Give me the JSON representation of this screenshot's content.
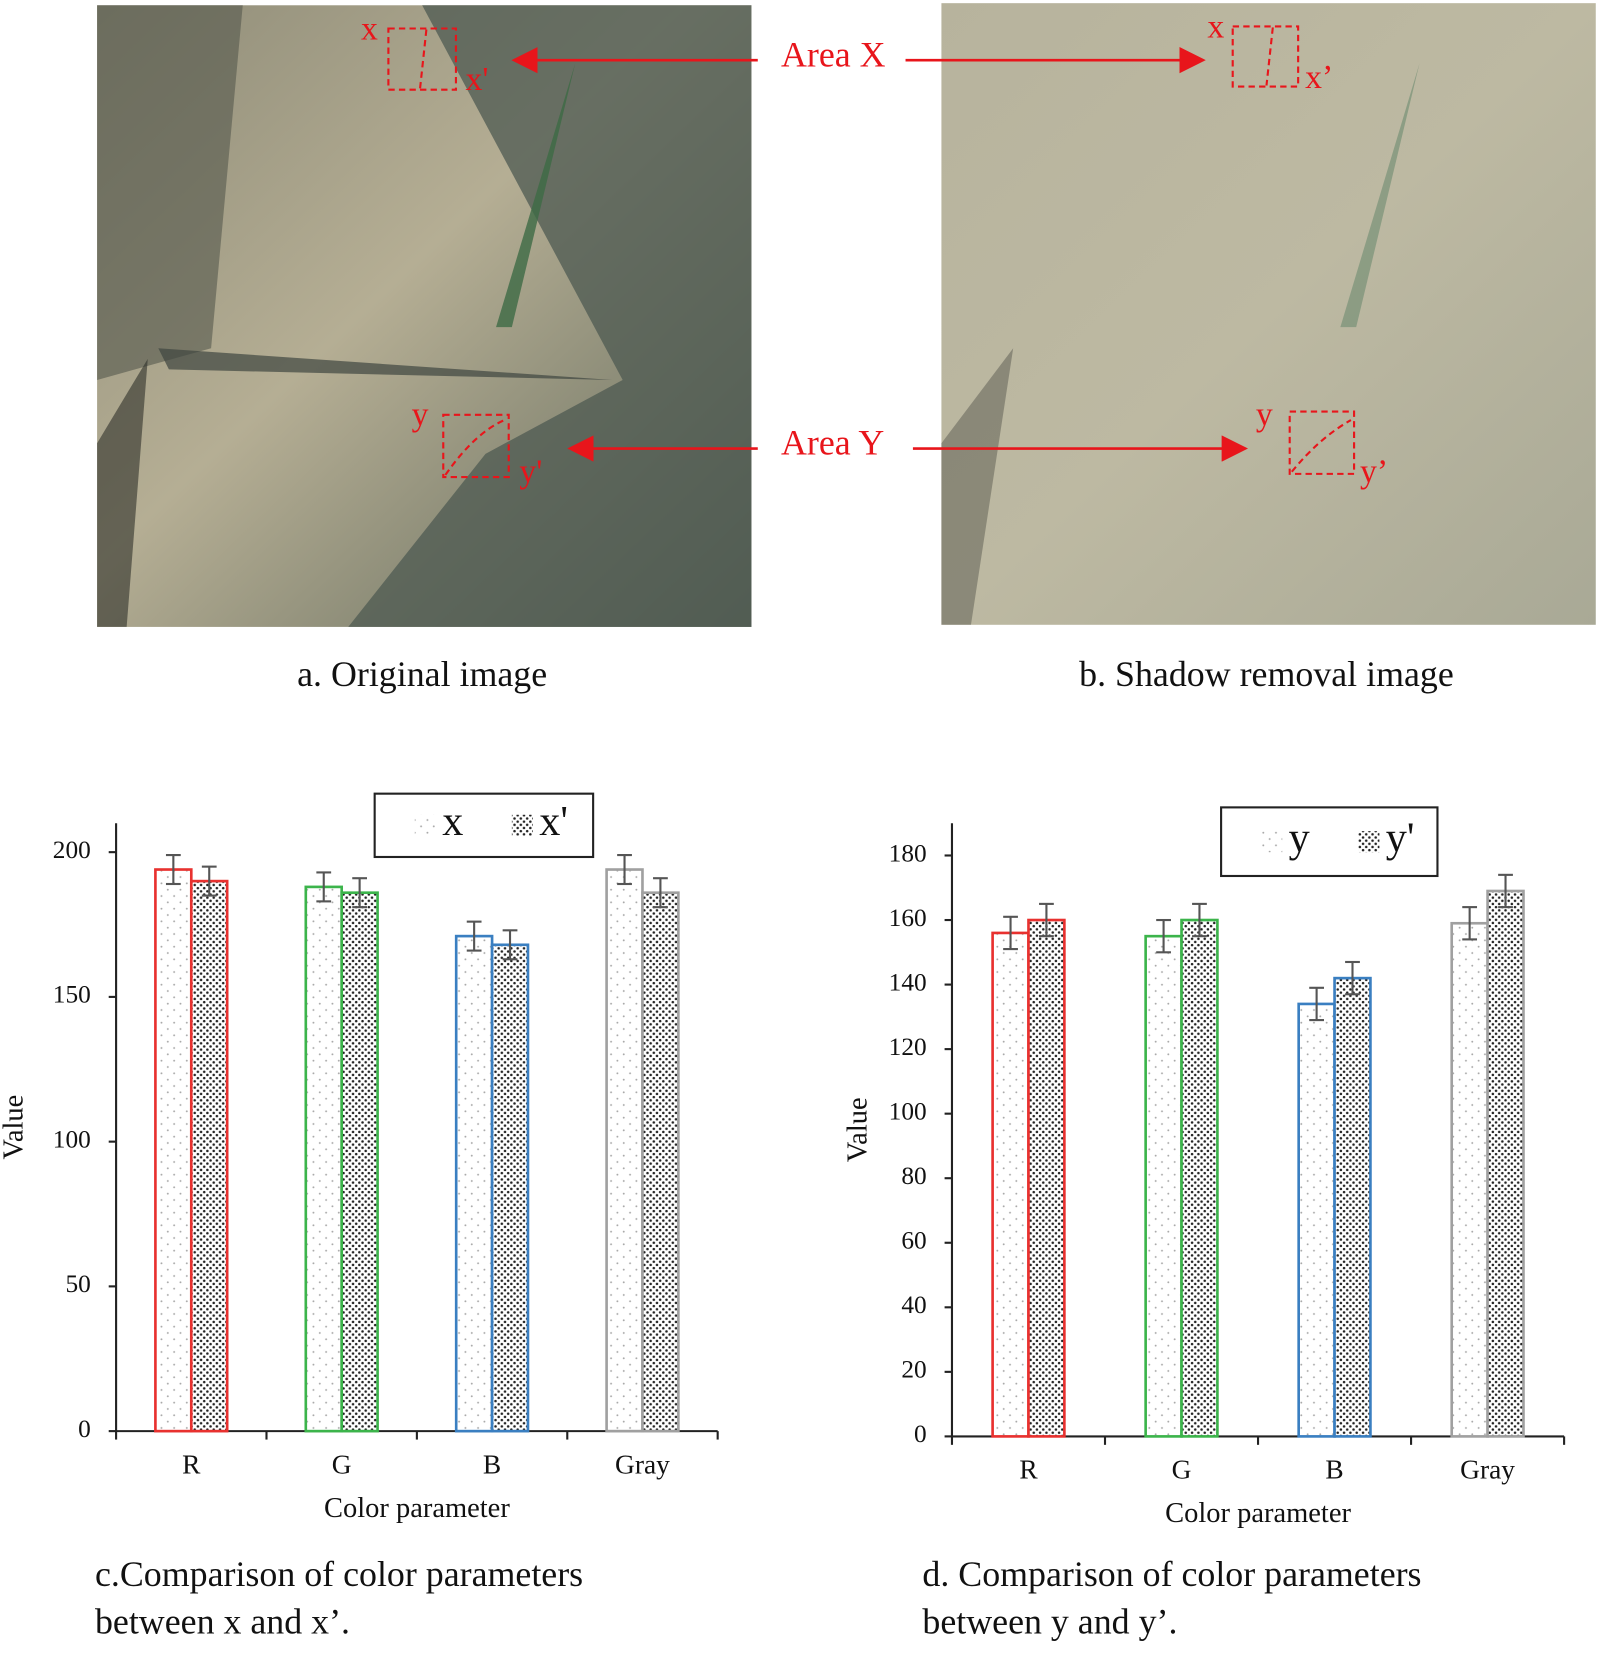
{
  "images": [
    {
      "caption": "a. Original image",
      "labels": [
        "x",
        "x'",
        "y",
        "y'"
      ]
    },
    {
      "caption": "b. Shadow removal image",
      "labels": [
        "x",
        "x’",
        "y",
        "y’"
      ]
    }
  ],
  "annotations": [
    "Area X",
    "Area Y"
  ],
  "chart_data": [
    {
      "type": "bar",
      "categories": [
        "R",
        "G",
        "B",
        "Gray"
      ],
      "category_colors": [
        "#e8312f",
        "#3cb44b",
        "#3a7fc1",
        "#a0a0a0"
      ],
      "series": [
        {
          "name": "x",
          "pattern": "sparse",
          "values": [
            194,
            188,
            171,
            194
          ],
          "errors": [
            5,
            5,
            5,
            5
          ]
        },
        {
          "name": "x'",
          "pattern": "dense",
          "values": [
            190,
            186,
            168,
            186
          ],
          "errors": [
            5,
            5,
            5,
            5
          ]
        }
      ],
      "ylim": [
        0,
        210
      ],
      "yticks": [
        0,
        50,
        100,
        150,
        200
      ],
      "xlabel": "Color parameter",
      "ylabel": "Value",
      "caption": [
        "c.Comparison of color parameters",
        "between x and x’."
      ]
    },
    {
      "type": "bar",
      "categories": [
        "R",
        "G",
        "B",
        "Gray"
      ],
      "category_colors": [
        "#e8312f",
        "#3cb44b",
        "#3a7fc1",
        "#a0a0a0"
      ],
      "series": [
        {
          "name": "y",
          "pattern": "sparse",
          "values": [
            156,
            155,
            134,
            159
          ],
          "errors": [
            5,
            5,
            5,
            5
          ]
        },
        {
          "name": "y'",
          "pattern": "dense",
          "values": [
            160,
            160,
            142,
            169
          ],
          "errors": [
            5,
            5,
            5,
            5
          ]
        }
      ],
      "ylim": [
        0,
        190
      ],
      "yticks": [
        0,
        20,
        40,
        60,
        80,
        100,
        120,
        140,
        160,
        180
      ],
      "xlabel": "Color parameter",
      "ylabel": "Value",
      "caption": [
        "d. Comparison of color parameters",
        "between y and y’."
      ]
    }
  ]
}
